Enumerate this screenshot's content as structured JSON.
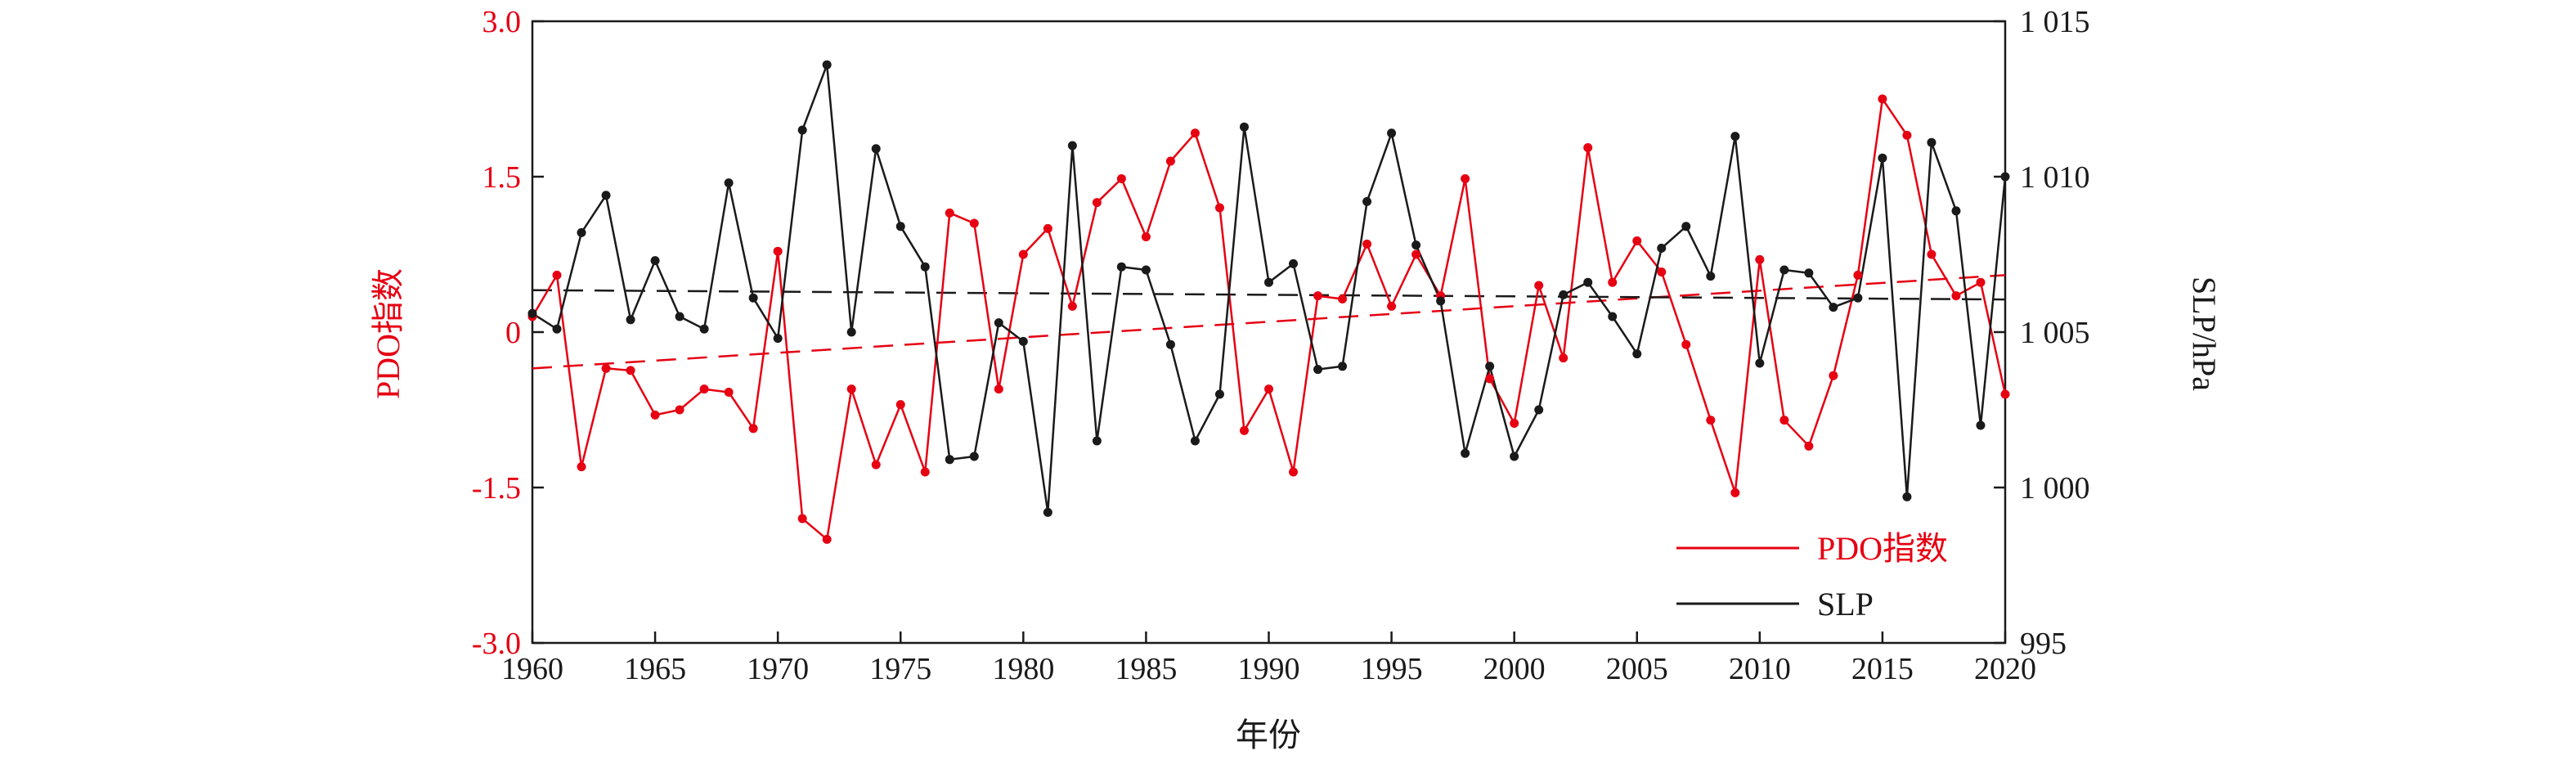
{
  "chart_data": {
    "type": "line",
    "xlabel": "年份",
    "ylabel_left": "PDO指数",
    "ylabel_right": "SLP/hPa",
    "xlim": [
      1960,
      2020
    ],
    "ylim_left": [
      -3.0,
      3.0
    ],
    "ylim_right": [
      995,
      1015
    ],
    "x_ticks": [
      "1960",
      "1965",
      "1970",
      "1975",
      "1980",
      "1985",
      "1990",
      "1995",
      "2000",
      "2005",
      "2010",
      "2015",
      "2020"
    ],
    "y_left_ticks": [
      "3.0",
      "1.5",
      "0",
      "-1.5",
      "-3.0"
    ],
    "y_left_tick_values": [
      3.0,
      1.5,
      0,
      -1.5,
      -3.0
    ],
    "y_right_ticks": [
      "1 015",
      "1 010",
      "1 005",
      "1 000",
      "995"
    ],
    "y_right_tick_values": [
      1015,
      1010,
      1005,
      1000,
      995
    ],
    "grid": false,
    "legend_position": "bottom-right",
    "x": [
      1960,
      1961,
      1962,
      1963,
      1964,
      1965,
      1966,
      1967,
      1968,
      1969,
      1970,
      1971,
      1972,
      1973,
      1974,
      1975,
      1976,
      1977,
      1978,
      1979,
      1980,
      1981,
      1982,
      1983,
      1984,
      1985,
      1986,
      1987,
      1988,
      1989,
      1990,
      1991,
      1992,
      1993,
      1994,
      1995,
      1996,
      1997,
      1998,
      1999,
      2000,
      2001,
      2002,
      2003,
      2004,
      2005,
      2006,
      2007,
      2008,
      2009,
      2010,
      2011,
      2012,
      2013,
      2014,
      2015,
      2016,
      2017,
      2018,
      2019,
      2020
    ],
    "series": [
      {
        "name": "PDO指数",
        "axis": "left",
        "color": "#e60012",
        "values": [
          0.15,
          0.55,
          -1.3,
          -0.35,
          -0.37,
          -0.8,
          -0.75,
          -0.55,
          -0.58,
          -0.93,
          0.78,
          -1.8,
          -2.0,
          -0.55,
          -1.28,
          -0.7,
          -1.35,
          1.15,
          1.05,
          -0.55,
          0.75,
          1.0,
          0.25,
          1.25,
          1.48,
          0.92,
          1.65,
          1.92,
          1.2,
          -0.95,
          -0.55,
          -1.35,
          0.35,
          0.32,
          0.85,
          0.25,
          0.75,
          0.35,
          1.48,
          -0.45,
          -0.88,
          0.45,
          -0.25,
          1.78,
          0.48,
          0.88,
          0.58,
          -0.12,
          -0.85,
          -1.55,
          0.7,
          -0.85,
          -1.1,
          -0.42,
          0.55,
          2.25,
          1.9,
          0.75,
          0.35,
          0.48,
          -0.6
        ],
        "trend": [
          -0.35,
          0.55
        ]
      },
      {
        "name": "SLP",
        "axis": "right",
        "color": "#1a1a1a",
        "values": [
          1005.6,
          1005.1,
          1008.2,
          1009.4,
          1005.4,
          1007.3,
          1005.5,
          1005.1,
          1009.8,
          1006.1,
          1004.8,
          1011.5,
          1013.6,
          1005.0,
          1010.9,
          1008.4,
          1007.1,
          1000.9,
          1001.0,
          1005.3,
          1004.7,
          999.2,
          1011.0,
          1001.5,
          1007.1,
          1007.0,
          1004.6,
          1001.5,
          1003.0,
          1011.6,
          1006.6,
          1007.2,
          1003.8,
          1003.9,
          1009.2,
          1011.4,
          1007.8,
          1006.0,
          1001.1,
          1003.9,
          1001.0,
          1002.5,
          1006.2,
          1006.6,
          1005.5,
          1004.3,
          1007.7,
          1008.4,
          1006.8,
          1011.3,
          1004.0,
          1007.0,
          1006.9,
          1005.8,
          1006.1,
          1010.6,
          999.7,
          1011.1,
          1008.9,
          1002.0,
          1010.0
        ],
        "trend": [
          1006.35,
          1006.05
        ]
      }
    ]
  }
}
